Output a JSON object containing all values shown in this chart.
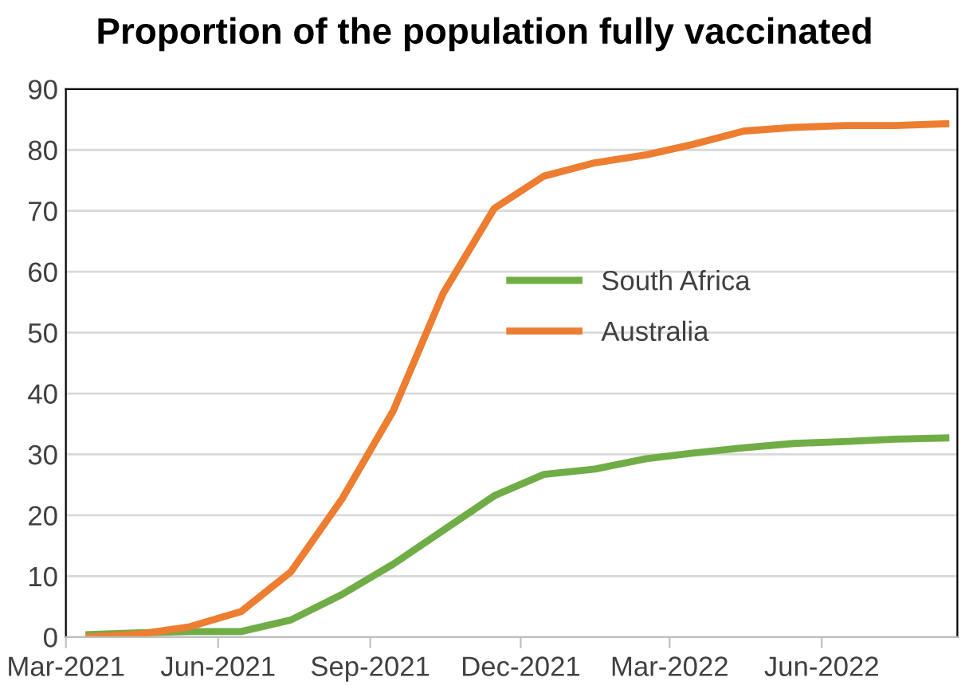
{
  "chart_data": {
    "type": "line",
    "title": "Proportion of the population fully vaccinated",
    "x": [
      "2021-03-15",
      "2021-04-15",
      "2021-05-15",
      "2021-06-15",
      "2021-07-15",
      "2021-08-15",
      "2021-09-15",
      "2021-10-15",
      "2021-11-15",
      "2021-12-15",
      "2022-01-15",
      "2022-02-15",
      "2022-03-15",
      "2022-04-15",
      "2022-05-15",
      "2022-06-15",
      "2022-07-15",
      "2022-08-15"
    ],
    "series": [
      {
        "name": "South Africa",
        "color": "#70ad47",
        "values": [
          0.4,
          0.7,
          0.9,
          0.9,
          2.8,
          7,
          12,
          17.5,
          23.2,
          26.7,
          27.6,
          29.3,
          30.2,
          31.1,
          31.8,
          32.1,
          32.5,
          32.7
        ]
      },
      {
        "name": "Australia",
        "color": "#ed7d31",
        "values": [
          0,
          0.5,
          1.7,
          4.2,
          10.7,
          22.7,
          37.2,
          56.4,
          70.4,
          75.7,
          77.9,
          79.2,
          80.9,
          83.1,
          83.7,
          84,
          84,
          84.3
        ]
      }
    ],
    "xlim": [
      "2021-03-01",
      "2022-08-22"
    ],
    "xticks": [
      {
        "value": "2021-03-01",
        "label": "Mar-2021"
      },
      {
        "value": "2021-06-01",
        "label": "Jun-2021"
      },
      {
        "value": "2021-09-01",
        "label": "Sep-2021"
      },
      {
        "value": "2021-12-01",
        "label": "Dec-2021"
      },
      {
        "value": "2022-03-01",
        "label": "Mar-2022"
      },
      {
        "value": "2022-06-01",
        "label": "Jun-2022"
      }
    ],
    "ylim": [
      0,
      90
    ],
    "yticks": [
      0,
      10,
      20,
      30,
      40,
      50,
      60,
      70,
      80,
      90
    ],
    "grid": "y",
    "legend": "right",
    "marker": "none",
    "line_style": "solid"
  }
}
